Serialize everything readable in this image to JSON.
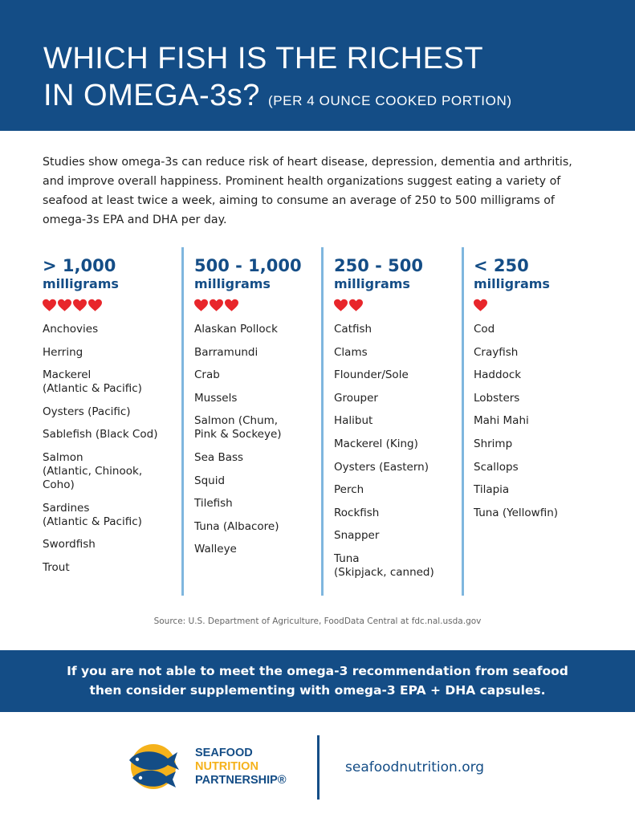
{
  "header": {
    "title_line1": "WHICH FISH IS THE RICHEST",
    "title_line2": "IN OMEGA-3s?",
    "subtitle": "(PER 4 OUNCE COOKED PORTION)"
  },
  "intro": "Studies show omega-3s can reduce risk of heart disease, depression, dementia and arthritis, and improve overall happiness. Prominent health organizations suggest eating a variety of seafood at least twice a week, aiming to consume an average of 250 to 500 milligrams of omega-3s EPA and DHA per day.",
  "columns": [
    {
      "range": "> 1,000",
      "unit": "milligrams",
      "hearts": 4,
      "items": [
        "Anchovies",
        "Herring",
        "Mackerel\n(Atlantic & Pacific)",
        "Oysters (Pacific)",
        "Sablefish (Black Cod)",
        "Salmon\n(Atlantic, Chinook,\nCoho)",
        "Sardines\n(Atlantic & Pacific)",
        "Swordfish",
        "Trout"
      ]
    },
    {
      "range": "500 - 1,000",
      "unit": "milligrams",
      "hearts": 3,
      "items": [
        "Alaskan Pollock",
        "Barramundi",
        "Crab",
        "Mussels",
        "Salmon (Chum,\nPink & Sockeye)",
        "Sea Bass",
        "Squid",
        "Tilefish",
        "Tuna (Albacore)",
        "Walleye"
      ]
    },
    {
      "range": "250 - 500",
      "unit": "milligrams",
      "hearts": 2,
      "items": [
        "Catfish",
        "Clams",
        "Flounder/Sole",
        "Grouper",
        "Halibut",
        "Mackerel (King)",
        "Oysters (Eastern)",
        "Perch",
        "Rockfish",
        "Snapper",
        "Tuna\n(Skipjack, canned)"
      ]
    },
    {
      "range": "< 250",
      "unit": "milligrams",
      "hearts": 1,
      "items": [
        "Cod",
        "Crayfish",
        "Haddock",
        "Lobsters",
        "Mahi Mahi",
        "Shrimp",
        "Scallops",
        "Tilapia",
        "Tuna (Yellowfin)"
      ]
    }
  ],
  "source": "Source: U.S. Department of Agriculture, FoodData Central at fdc.nal.usda.gov",
  "banner": {
    "line1": "If you are not able to meet the omega-3 recommendation from seafood",
    "line2": "then consider supplementing with omega-3 EPA + DHA capsules."
  },
  "footer": {
    "brand_line1": "SEAFOOD",
    "brand_line2": "NUTRITION",
    "brand_line3": "PARTNERSHIP®",
    "website": "seafoodnutrition.org"
  },
  "colors": {
    "brand_blue": "#144d86",
    "heart_red": "#e8262b",
    "divider_blue": "#7fb6de",
    "logo_yellow": "#f5b21b"
  }
}
